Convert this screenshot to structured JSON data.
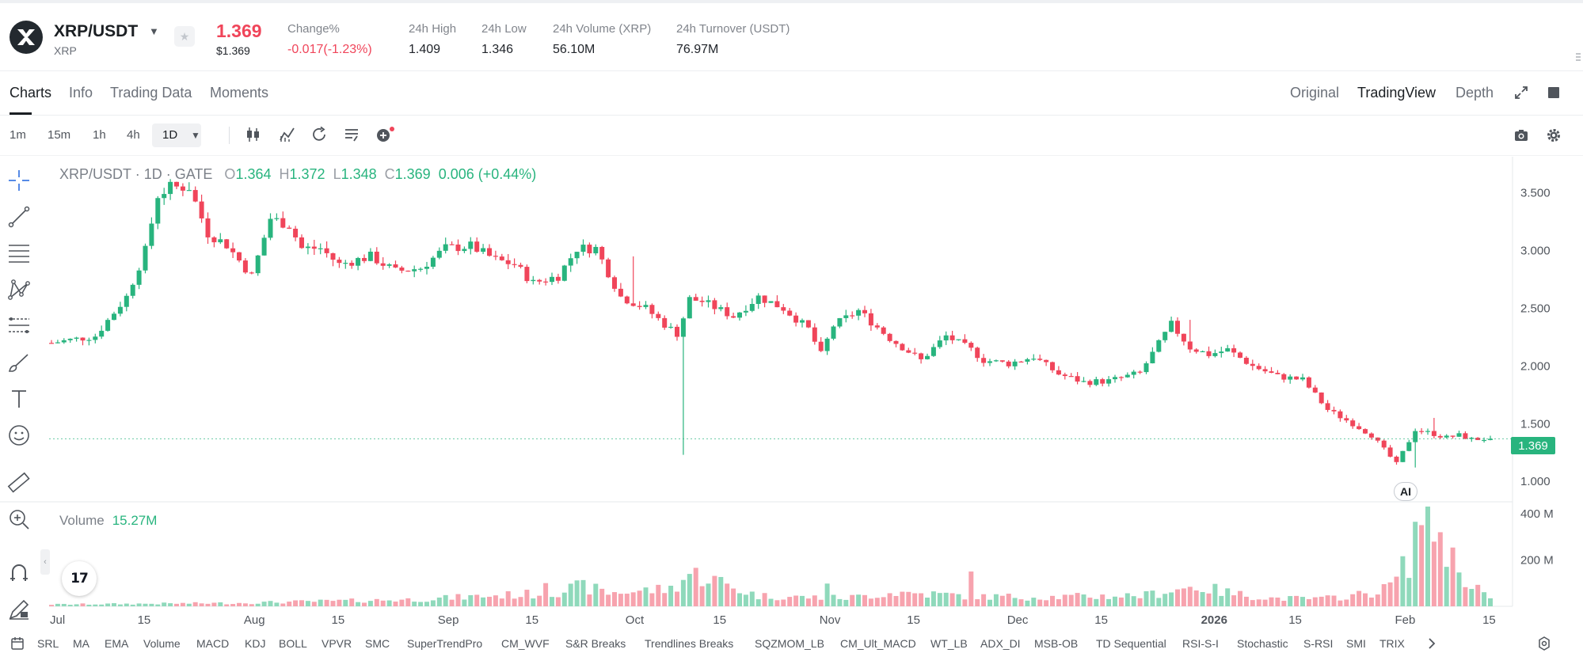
{
  "header": {
    "symbol": "XRP/USDT",
    "base": "XRP",
    "price": "1.369",
    "price_usd": "$1.369",
    "stats": [
      {
        "label": "Change%",
        "value": "-0.017(-1.23%)",
        "tone": "red"
      },
      {
        "label": "24h High",
        "value": "1.409",
        "tone": "normal"
      },
      {
        "label": "24h Low",
        "value": "1.346",
        "tone": "normal"
      },
      {
        "label": "24h Volume (XRP)",
        "value": "56.10M",
        "tone": "normal"
      },
      {
        "label": "24h Turnover (USDT)",
        "value": "76.97M",
        "tone": "normal"
      }
    ]
  },
  "tabs": {
    "left": [
      "Charts",
      "Info",
      "Trading Data",
      "Moments"
    ],
    "right": [
      "Original",
      "TradingView",
      "Depth"
    ]
  },
  "toolbar": {
    "timeframes": [
      "1m",
      "15m",
      "1h",
      "4h"
    ],
    "selected": "1D"
  },
  "legend": {
    "symbol": "XRP/USDT",
    "interval": "1D",
    "exchange": "GATE",
    "o_key": "O",
    "open": "1.364",
    "h_key": "H",
    "high": "1.372",
    "l_key": "L",
    "low": "1.348",
    "c_key": "C",
    "close": "1.369",
    "change": "0.006 (+0.44%)"
  },
  "volume_legend": {
    "label": "Volume",
    "value": "15.27M"
  },
  "last_price_tag": "1.369",
  "ai_badge": "AI",
  "tv_logo": "17",
  "indicators": [
    "SRL",
    "MA",
    "EMA",
    "Volume",
    "MACD",
    "KDJ",
    "BOLL",
    "VPVR",
    "SMC",
    "SuperTrendPro",
    "CM_WVF",
    "S&R Breaks",
    "Trendlines Breaks",
    "SQZMOM_LB",
    "CM_Ult_MACD",
    "WT_LB",
    "ADX_DI",
    "MSB-OB",
    "TD Sequential",
    "RSI-S-I",
    "Stochastic",
    "S-RSI",
    "SMI",
    "TRIX"
  ],
  "colors": {
    "up": "#28b47e",
    "down": "#f0455a",
    "up_vol": "#8fd9bb",
    "down_vol": "#f7a3ae"
  },
  "chart_data": {
    "type": "candlestick",
    "price_axis_ticks": [
      "3.500",
      "3.000",
      "2.500",
      "2.000",
      "1.500",
      "1.000"
    ],
    "price_axis_values": [
      3.5,
      3.0,
      2.5,
      2.0,
      1.5,
      1.0
    ],
    "volume_axis_ticks": [
      "400 M",
      "200 M"
    ],
    "volume_axis_values": [
      400,
      200
    ],
    "x_ticks": [
      "Jul",
      "15",
      "Aug",
      "15",
      "Sep",
      "15",
      "Oct",
      "15",
      "Nov",
      "15",
      "Dec",
      "15",
      "2026",
      "15",
      "Feb",
      "15"
    ],
    "x_tick_days": [
      1,
      15,
      32,
      46,
      63,
      77,
      93,
      107,
      124,
      138,
      154,
      168,
      185,
      199,
      216,
      230
    ],
    "ylim": [
      0.85,
      3.8
    ],
    "volume_max": 430,
    "path_days": [
      1,
      8,
      13,
      16,
      18,
      20,
      23,
      26,
      29,
      33,
      36,
      39,
      41,
      44,
      47,
      52,
      56,
      60,
      64,
      68,
      72,
      75,
      78,
      82,
      85,
      88,
      92,
      96,
      99,
      101,
      102,
      103,
      105,
      110,
      114,
      118,
      122,
      124,
      126,
      130,
      135,
      140,
      144,
      148,
      150,
      154,
      158,
      162,
      166,
      170,
      175,
      180,
      183,
      186,
      189,
      193,
      197,
      201,
      205,
      209,
      212,
      216,
      219,
      222,
      224,
      226,
      228,
      231
    ],
    "path_close": [
      2.2,
      2.26,
      2.6,
      3.0,
      3.48,
      3.55,
      3.55,
      3.15,
      3.05,
      2.78,
      3.28,
      3.22,
      3.02,
      3.02,
      2.88,
      2.95,
      2.82,
      2.85,
      3.02,
      3.04,
      2.92,
      2.88,
      2.72,
      2.78,
      3.02,
      3.02,
      2.6,
      2.5,
      2.36,
      2.28,
      2.42,
      2.58,
      2.56,
      2.43,
      2.6,
      2.5,
      2.32,
      2.1,
      2.35,
      2.48,
      2.24,
      2.05,
      2.26,
      2.14,
      2.05,
      2.02,
      2.08,
      1.93,
      1.86,
      1.87,
      1.94,
      2.36,
      2.16,
      2.1,
      2.14,
      2.0,
      1.91,
      1.88,
      1.62,
      1.5,
      1.4,
      1.15,
      1.45,
      1.41,
      1.38,
      1.4,
      1.365,
      1.369
    ],
    "path_wick_high": [
      {
        "day": 94,
        "price": 2.95
      },
      {
        "day": 20,
        "price": 3.62
      },
      {
        "day": 183,
        "price": 2.4
      },
      {
        "day": 222,
        "price": 1.55
      }
    ],
    "path_wick_low": [
      {
        "day": 102,
        "price": 1.23
      },
      {
        "day": 219,
        "price": 1.12
      }
    ],
    "volume_path_days": [
      1,
      30,
      60,
      70,
      80,
      86,
      90,
      100,
      103,
      106,
      110,
      114,
      120,
      128,
      136,
      150,
      160,
      170,
      176,
      180,
      184,
      190,
      196,
      204,
      210,
      214,
      216,
      218,
      220,
      222,
      226,
      231
    ],
    "volume_path_values": [
      8,
      14,
      30,
      44,
      55,
      85,
      58,
      75,
      140,
      125,
      80,
      45,
      40,
      36,
      60,
      42,
      40,
      44,
      48,
      70,
      85,
      54,
      35,
      32,
      50,
      72,
      120,
      200,
      430,
      360,
      150,
      35
    ],
    "volume_spikes": [
      {
        "day": 80,
        "value": 100
      },
      {
        "day": 148,
        "value": 150
      },
      {
        "day": 125,
        "value": 98
      },
      {
        "day": 220,
        "value": 350
      }
    ]
  }
}
